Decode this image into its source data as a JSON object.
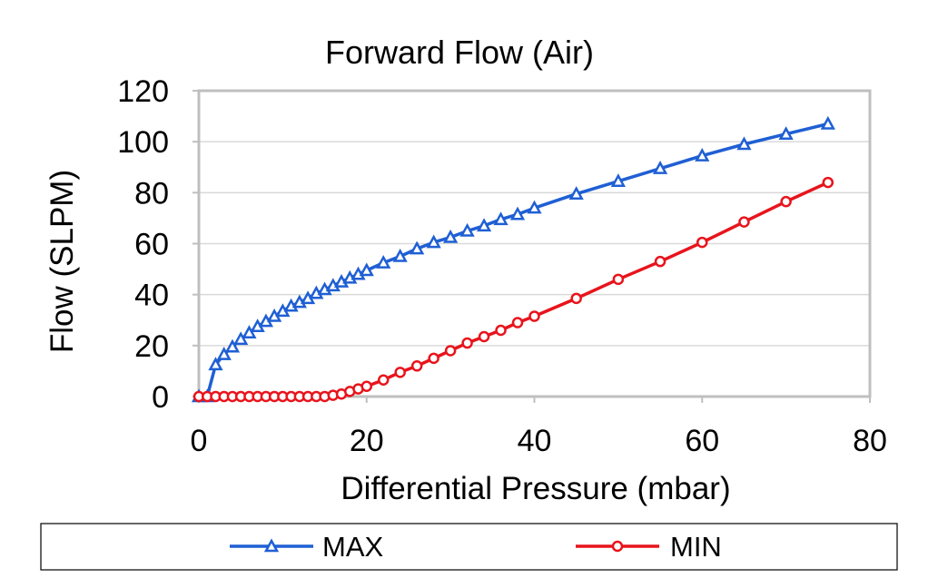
{
  "chart_data": {
    "type": "line",
    "title": "Forward Flow (Air)",
    "xlabel": "Differential Pressure (mbar)",
    "ylabel": "Flow (SLPM)",
    "xlim": [
      0,
      80
    ],
    "ylim": [
      0,
      120
    ],
    "xticks": [
      "0",
      "20",
      "40",
      "60",
      "80"
    ],
    "yticks": [
      "0",
      "20",
      "40",
      "60",
      "80",
      "100",
      "120"
    ],
    "grid": "horizontal",
    "legend_position": "bottom",
    "series": [
      {
        "name": "MAX",
        "color": "#1F5FD4",
        "marker": "triangle",
        "x": [
          0,
          1,
          2,
          3,
          4,
          5,
          6,
          7,
          8,
          9,
          10,
          11,
          12,
          13,
          14,
          15,
          16,
          17,
          18,
          19,
          20,
          22,
          24,
          26,
          28,
          30,
          32,
          34,
          36,
          38,
          40,
          45,
          50,
          55,
          60,
          65,
          70,
          75
        ],
        "y": [
          0,
          0,
          12.5,
          16.5,
          19.5,
          22.5,
          25,
          27.5,
          29.5,
          31.5,
          33.5,
          35.5,
          37,
          38.5,
          40.5,
          42,
          43.5,
          45,
          46.5,
          48,
          49.5,
          52.5,
          55,
          58,
          60.5,
          62.5,
          65,
          67,
          69.5,
          71.5,
          74,
          79.5,
          84.5,
          89.5,
          94.5,
          99,
          103,
          107
        ]
      },
      {
        "name": "MIN",
        "color": "#E8141C",
        "marker": "circle",
        "x": [
          0,
          1,
          2,
          3,
          4,
          5,
          6,
          7,
          8,
          9,
          10,
          11,
          12,
          13,
          14,
          15,
          16,
          17,
          18,
          19,
          20,
          22,
          24,
          26,
          28,
          30,
          32,
          34,
          36,
          38,
          40,
          45,
          50,
          55,
          60,
          65,
          70,
          75
        ],
        "y": [
          0,
          0,
          0,
          0,
          0,
          0,
          0,
          0,
          0,
          0,
          0,
          0,
          0,
          0,
          0,
          0,
          0.5,
          1,
          2,
          3,
          4,
          6.5,
          9.5,
          12,
          15,
          18,
          21,
          23.5,
          26,
          29,
          31.5,
          38.5,
          46,
          53,
          60.5,
          68.5,
          76.5,
          84
        ]
      }
    ]
  }
}
